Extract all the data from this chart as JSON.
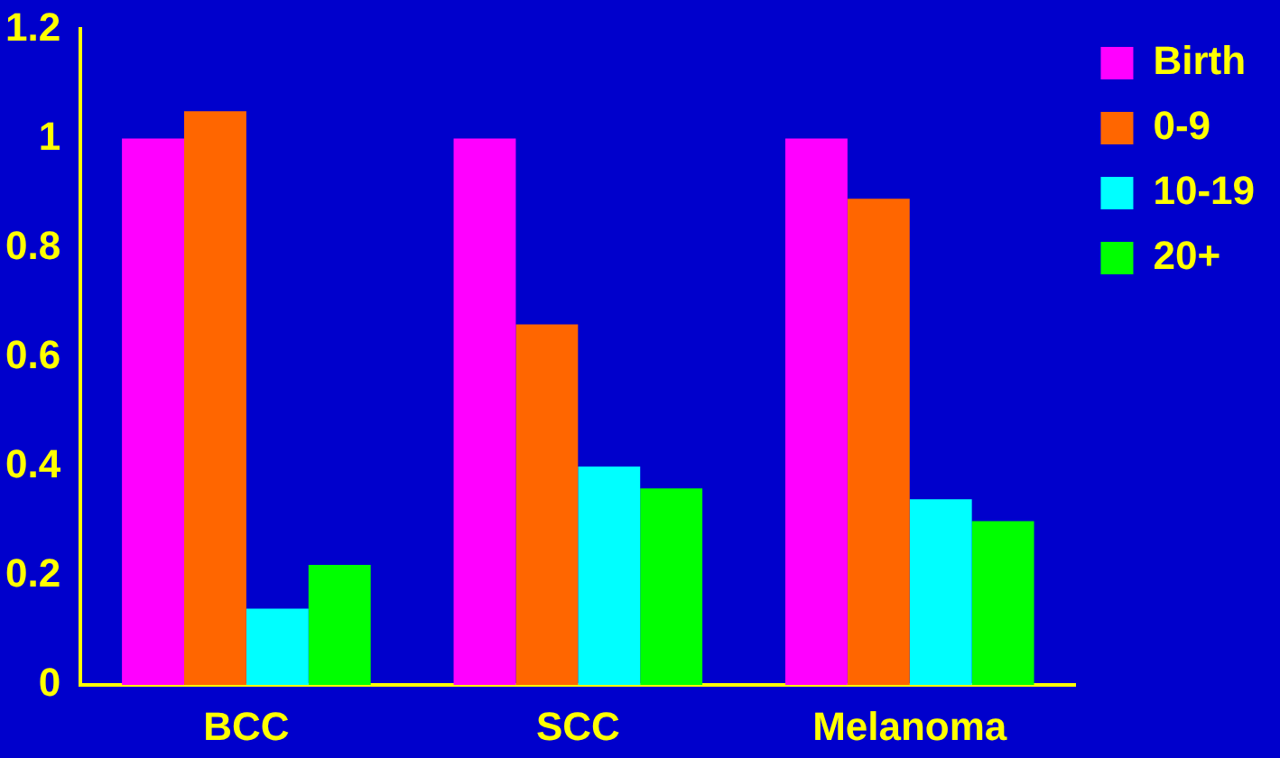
{
  "chart_data": {
    "type": "bar",
    "categories": [
      "BCC",
      "SCC",
      "Melanoma"
    ],
    "series": [
      {
        "name": "Birth",
        "color": "#ff00ff",
        "values": [
          1,
          1,
          1
        ]
      },
      {
        "name": "0-9",
        "color": "#ff6600",
        "values": [
          1.05,
          0.66,
          0.89
        ]
      },
      {
        "name": "10-19",
        "color": "#00ffff",
        "values": [
          0.14,
          0.4,
          0.34
        ]
      },
      {
        "name": "20+",
        "color": "#00ff00",
        "values": [
          0.22,
          0.36,
          0.3
        ]
      }
    ],
    "ylim": [
      0,
      1.2
    ],
    "yticks": [
      0,
      0.2,
      0.4,
      0.6,
      0.8,
      1,
      1.2
    ],
    "grid": false,
    "legend": "top right"
  }
}
